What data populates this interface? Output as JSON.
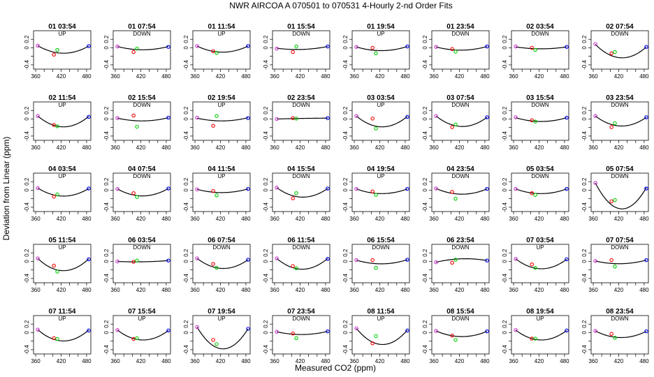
{
  "title": "NWR   AIRCOA A   070501 to 070531   4-Hourly 2-nd Order Fits",
  "xlabel": "Measured CO2 (ppm)",
  "ylabel": "Deviation from Linear (ppm)",
  "colors": {
    "point1": "#cc33cc",
    "point2": "#ee0000",
    "point3": "#00cc00",
    "point4": "#0000ee",
    "curve": "#000000"
  },
  "chart_data": {
    "type": "scatter",
    "description_free": true,
    "x_ticks": [
      360,
      420,
      480
    ],
    "y_ticks": [
      -0.4,
      0,
      0.2
    ],
    "xlim": [
      355,
      490
    ],
    "ylim": [
      -0.5,
      0.4
    ],
    "standards_x": [
      365,
      403,
      411,
      485
    ],
    "panels": [
      {
        "time": "01 03:54",
        "label": "UP",
        "curve": [
          0.05,
          -0.11,
          0.04
        ],
        "points": [
          0.05,
          -0.16,
          -0.05,
          0.04
        ]
      },
      {
        "time": "01 07:54",
        "label": "DOWN",
        "curve": [
          0.03,
          -0.04,
          0.03
        ],
        "points": [
          0.03,
          -0.1,
          -0.02,
          0.02
        ]
      },
      {
        "time": "01 11:54",
        "label": "UP",
        "curve": [
          0.04,
          -0.09,
          0.04
        ],
        "points": [
          0.04,
          -0.08,
          -0.12,
          0.04
        ]
      },
      {
        "time": "01 15:54",
        "label": "DOWN",
        "curve": [
          -0.01,
          -0.04,
          0.03
        ],
        "points": [
          -0.02,
          -0.1,
          0.03,
          0.03
        ]
      },
      {
        "time": "01 19:54",
        "label": "UP",
        "curve": [
          0.02,
          -0.06,
          0.03
        ],
        "points": [
          0.02,
          0.0,
          -0.13,
          0.03
        ]
      },
      {
        "time": "01 23:54",
        "label": "DOWN",
        "curve": [
          0.02,
          -0.05,
          0.03
        ],
        "points": [
          0.02,
          -0.03,
          -0.09,
          0.03
        ]
      },
      {
        "time": "02 03:54",
        "label": "DOWN",
        "curve": [
          0.02,
          -0.02,
          0.02
        ],
        "points": [
          0.03,
          0.0,
          -0.05,
          0.02
        ]
      },
      {
        "time": "02 07:54",
        "label": "DOWN",
        "curve": [
          0.08,
          -0.2,
          0.02
        ],
        "points": [
          0.09,
          -0.13,
          -0.1,
          0.02
        ]
      },
      {
        "time": "02 11:54",
        "label": "UP",
        "curve": [
          0.07,
          -0.16,
          0.06
        ],
        "points": [
          0.07,
          -0.14,
          -0.17,
          0.05
        ]
      },
      {
        "time": "02 15:54",
        "label": "DOWN",
        "curve": [
          0.02,
          -0.04,
          0.03
        ],
        "points": [
          0.02,
          0.08,
          -0.18,
          0.03
        ]
      },
      {
        "time": "02 19:54",
        "label": "UP",
        "curve": [
          0.02,
          -0.04,
          0.03
        ],
        "points": [
          0.03,
          -0.16,
          0.07,
          0.02
        ]
      },
      {
        "time": "02 23:54",
        "label": "DOWN",
        "curve": [
          0.0,
          0.01,
          0.02
        ],
        "points": [
          0.0,
          0.02,
          0.01,
          0.02
        ]
      },
      {
        "time": "03 03:54",
        "label": "UP",
        "curve": [
          0.07,
          -0.16,
          0.06
        ],
        "points": [
          0.07,
          0.01,
          -0.22,
          0.05
        ]
      },
      {
        "time": "03 07:54",
        "label": "DOWN",
        "curve": [
          0.07,
          -0.15,
          0.04
        ],
        "points": [
          0.07,
          -0.19,
          -0.13,
          0.04
        ]
      },
      {
        "time": "03 15:54",
        "label": "DOWN",
        "curve": [
          0.03,
          -0.05,
          0.03
        ],
        "points": [
          0.04,
          -0.03,
          -0.06,
          0.03
        ]
      },
      {
        "time": "03 23:54",
        "label": "DOWN",
        "curve": [
          0.07,
          -0.14,
          0.04
        ],
        "points": [
          0.07,
          -0.19,
          -0.1,
          0.04
        ]
      },
      {
        "time": "04 03:54",
        "label": "UP",
        "curve": [
          0.05,
          -0.12,
          0.04
        ],
        "points": [
          0.05,
          -0.15,
          -0.1,
          0.04
        ]
      },
      {
        "time": "04 07:54",
        "label": "DOWN",
        "curve": [
          0.03,
          -0.12,
          0.04
        ],
        "points": [
          0.03,
          -0.07,
          -0.16,
          0.04
        ]
      },
      {
        "time": "04 11:54",
        "label": "UP",
        "curve": [
          0.02,
          -0.05,
          0.03
        ],
        "points": [
          0.02,
          -0.02,
          -0.12,
          0.03
        ]
      },
      {
        "time": "04 15:54",
        "label": "DOWN",
        "curve": [
          0.06,
          -0.14,
          0.04
        ],
        "points": [
          0.06,
          -0.19,
          -0.07,
          0.04
        ]
      },
      {
        "time": "04 19:54",
        "label": "UP",
        "curve": [
          0.03,
          -0.07,
          0.03
        ],
        "points": [
          0.03,
          -0.03,
          -0.11,
          0.03
        ]
      },
      {
        "time": "04 23:54",
        "label": "DOWN",
        "curve": [
          0.04,
          -0.08,
          0.03
        ],
        "points": [
          0.04,
          -0.04,
          -0.2,
          0.03
        ]
      },
      {
        "time": "05 03:54",
        "label": "DOWN",
        "curve": [
          0.03,
          -0.07,
          0.03
        ],
        "points": [
          0.03,
          -0.07,
          -0.11,
          0.03
        ]
      },
      {
        "time": "05 07:54",
        "label": "DOWN",
        "curve": [
          0.17,
          -0.37,
          0.06
        ],
        "points": [
          0.17,
          -0.26,
          -0.23,
          0.04
        ]
      },
      {
        "time": "05 11:54",
        "label": "UP",
        "curve": [
          0.07,
          -0.19,
          0.06
        ],
        "points": [
          0.07,
          -0.1,
          -0.24,
          0.05
        ]
      },
      {
        "time": "06 03:54",
        "label": "DOWN",
        "curve": [
          0.0,
          -0.01,
          0.02
        ],
        "points": [
          0.0,
          -0.01,
          0.02,
          0.02
        ]
      },
      {
        "time": "06 07:54",
        "label": "DOWN",
        "curve": [
          0.07,
          -0.14,
          0.04
        ],
        "points": [
          0.07,
          -0.06,
          -0.15,
          0.04
        ]
      },
      {
        "time": "06 11:54",
        "label": "DOWN",
        "curve": [
          0.07,
          -0.16,
          0.07
        ],
        "points": [
          0.07,
          -0.11,
          -0.16,
          0.06
        ]
      },
      {
        "time": "06 15:54",
        "label": "DOWN",
        "curve": [
          0.03,
          -0.05,
          0.04
        ],
        "points": [
          0.03,
          0.03,
          -0.15,
          0.04
        ]
      },
      {
        "time": "06 23:54",
        "label": "DOWN",
        "curve": [
          -0.02,
          0.05,
          0.02
        ],
        "points": [
          -0.02,
          -0.03,
          0.04,
          0.02
        ]
      },
      {
        "time": "07 03:54",
        "label": "UP",
        "curve": [
          0.06,
          -0.15,
          0.05
        ],
        "points": [
          0.06,
          -0.07,
          -0.15,
          0.05
        ]
      },
      {
        "time": "07 07:54",
        "label": "DOWN",
        "curve": [
          0.01,
          -0.05,
          0.03
        ],
        "points": [
          0.01,
          0.03,
          -0.12,
          0.03
        ]
      },
      {
        "time": "07 11:54",
        "label": "UP",
        "curve": [
          0.07,
          -0.17,
          0.06
        ],
        "points": [
          0.07,
          -0.13,
          -0.15,
          0.05
        ]
      },
      {
        "time": "07 15:54",
        "label": "UP",
        "curve": [
          0.06,
          -0.15,
          0.05
        ],
        "points": [
          0.06,
          -0.15,
          -0.13,
          0.05
        ]
      },
      {
        "time": "07 19:54",
        "label": "UP",
        "curve": [
          0.13,
          -0.33,
          0.09
        ],
        "points": [
          0.13,
          -0.17,
          -0.27,
          0.09
        ]
      },
      {
        "time": "07 23:54",
        "label": "DOWN",
        "curve": [
          0.02,
          -0.04,
          0.03
        ],
        "points": [
          0.02,
          -0.02,
          -0.13,
          0.03
        ]
      },
      {
        "time": "08 11:54",
        "label": "UP",
        "curve": [
          0.1,
          -0.24,
          0.06
        ],
        "points": [
          0.1,
          -0.25,
          -0.08,
          0.05
        ]
      },
      {
        "time": "08 15:54",
        "label": "DOWN",
        "curve": [
          0.04,
          -0.08,
          0.03
        ],
        "points": [
          0.04,
          -0.07,
          -0.17,
          0.03
        ]
      },
      {
        "time": "08 19:54",
        "label": "UP",
        "curve": [
          0.06,
          -0.15,
          0.05
        ],
        "points": [
          0.06,
          -0.14,
          -0.14,
          0.05
        ]
      },
      {
        "time": "08 23:54",
        "label": "DOWN",
        "curve": [
          0.04,
          -0.1,
          0.03
        ],
        "points": [
          0.04,
          -0.03,
          -0.12,
          0.03
        ]
      }
    ]
  }
}
